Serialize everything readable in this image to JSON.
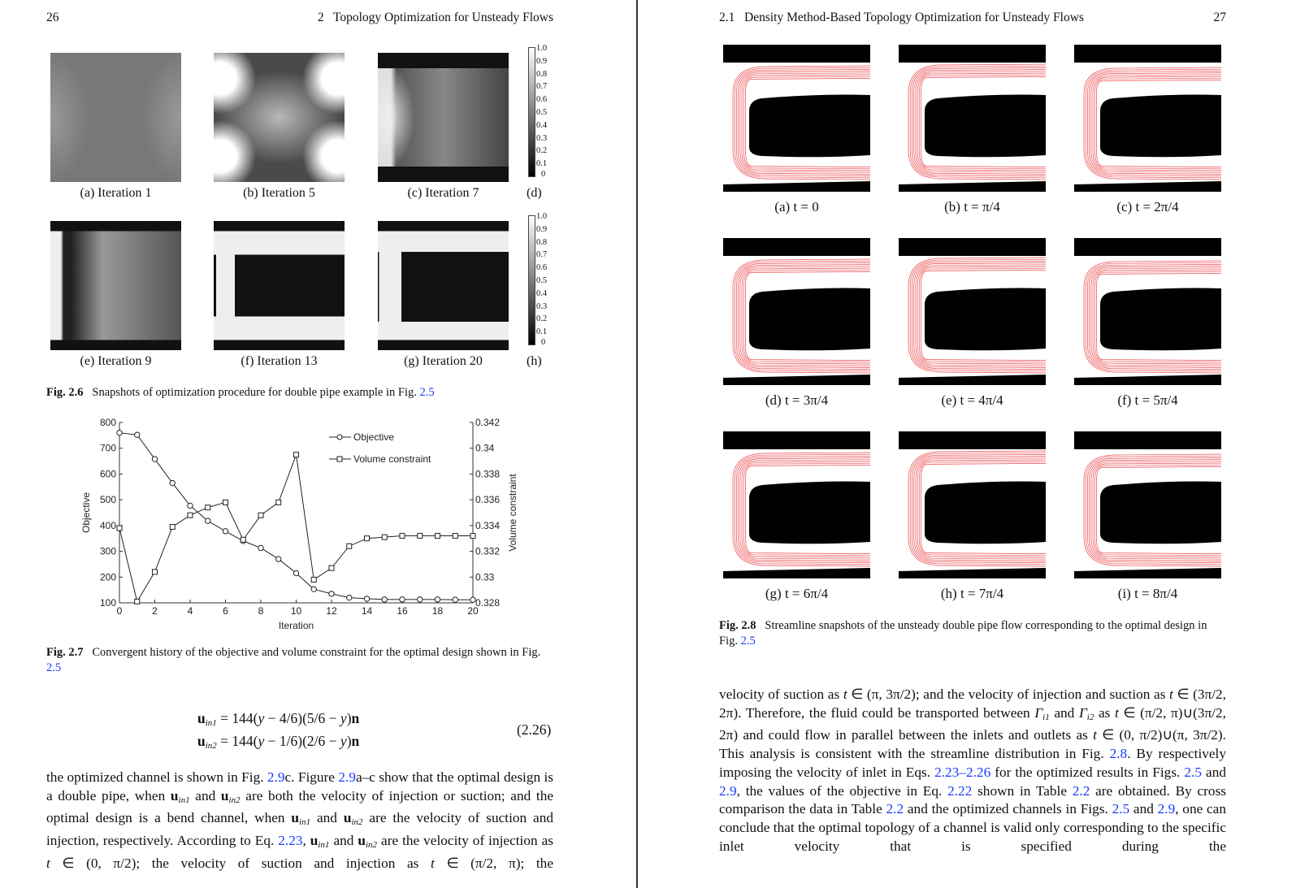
{
  "left_page": {
    "page_number": "26",
    "running_title": "2   Topology Optimization for Unsteady Flows",
    "fig26": {
      "captions": [
        "(a) Iteration 1",
        "(b) Iteration 5",
        "(c) Iteration 7",
        "(d)",
        "(e) Iteration 9",
        "(f) Iteration 13",
        "(g) Iteration 20",
        "(h)"
      ],
      "colorbar_labels": [
        "1.0",
        "0.9",
        "0.8",
        "0.7",
        "0.6",
        "0.5",
        "0.4",
        "0.3",
        "0.2",
        "0.1",
        "0"
      ],
      "label": "Fig. 2.6",
      "text": "Snapshots of optimization procedure for double pipe example in Fig.",
      "link": "2.5"
    },
    "fig27": {
      "label": "Fig. 2.7",
      "text": "Convergent history of the objective and volume constraint for the optimal design shown in Fig.",
      "link": "2.5"
    },
    "equation": {
      "line1": [
        "u",
        "in1",
        " = 144(",
        "y",
        " − 4/6)(5/6 − ",
        "y",
        ")",
        "n"
      ],
      "line2": [
        "u",
        "in2",
        " = 144(",
        "y",
        " − 1/6)(2/6 − ",
        "y",
        ")",
        "n"
      ],
      "number": "(2.26)"
    },
    "paragraph": [
      {
        "t": "the optimized channel is shown in Fig. "
      },
      {
        "l": "2.9"
      },
      {
        "t": "c. Figure "
      },
      {
        "l": "2.9"
      },
      {
        "t": "a–c show that the optimal design is a double pipe, when "
      },
      {
        "b": "u"
      },
      {
        "s": "in1"
      },
      {
        "t": " and "
      },
      {
        "b": "u"
      },
      {
        "s": "in2"
      },
      {
        "t": " are both the velocity of injection or suction; and the optimal design is a bend channel, when "
      },
      {
        "b": "u"
      },
      {
        "s": "in1"
      },
      {
        "t": " and "
      },
      {
        "b": "u"
      },
      {
        "s": "in2"
      },
      {
        "t": " are the velocity of suction and injection, respectively. According to Eq. "
      },
      {
        "l": "2.23"
      },
      {
        "t": ", "
      },
      {
        "b": "u"
      },
      {
        "s": "in1"
      },
      {
        "t": " and "
      },
      {
        "b": "u"
      },
      {
        "s": "in2"
      },
      {
        "t": " are the velocity of injection as "
      },
      {
        "i": "t"
      },
      {
        "t": " ∈ (0, π/2); the velocity of suction and injection as "
      },
      {
        "i": "t"
      },
      {
        "t": " ∈ (π/2, π); the"
      }
    ]
  },
  "chart_data": {
    "type": "line",
    "xlabel": "Iteration",
    "ylabel": "Objective",
    "y2label": "Volume constraint",
    "x": [
      0,
      1,
      2,
      3,
      4,
      5,
      6,
      7,
      8,
      9,
      10,
      11,
      12,
      13,
      14,
      15,
      16,
      17,
      18,
      19,
      20
    ],
    "xlim": [
      0,
      20
    ],
    "xticks": [
      0,
      2,
      4,
      6,
      8,
      10,
      12,
      14,
      16,
      18,
      20
    ],
    "ylim": [
      100,
      800
    ],
    "yticks": [
      100,
      200,
      300,
      400,
      500,
      600,
      700,
      800
    ],
    "y2lim": [
      0.328,
      0.342
    ],
    "y2ticks": [
      "0.328",
      "0.33",
      "0.332",
      "0.334",
      "0.336",
      "0.338",
      "0.34",
      "0.342"
    ],
    "legend_position": "top-right",
    "grid": false,
    "series": [
      {
        "name": "Objective",
        "marker": "circle",
        "axis": "left",
        "values": [
          760,
          752,
          658,
          565,
          477,
          418,
          378,
          340,
          313,
          270,
          215,
          153,
          135,
          120,
          116,
          113,
          113,
          113,
          113,
          112,
          112
        ]
      },
      {
        "name": "Volume constraint",
        "marker": "square",
        "axis": "right",
        "values": [
          0.3338,
          0.3281,
          0.3304,
          0.3339,
          0.3348,
          0.3354,
          0.3358,
          0.3329,
          0.3348,
          0.3358,
          0.3395,
          0.3298,
          0.3307,
          0.3324,
          0.333,
          0.3331,
          0.3332,
          0.3332,
          0.3332,
          0.3332,
          0.3332
        ]
      }
    ]
  },
  "right_page": {
    "page_number": "27",
    "running_title": "2.1   Density Method-Based Topology Optimization for Unsteady Flows",
    "fig28": {
      "captions": [
        "(a) t = 0",
        "(b) t = π/4",
        "(c) t = 2π/4",
        "(d) t = 3π/4",
        "(e) t = 4π/4",
        "(f) t = 5π/4",
        "(g) t = 6π/4",
        "(h) t = 7π/4",
        "(i) t = 8π/4"
      ],
      "label": "Fig. 2.8",
      "text": "Streamline snapshots of the unsteady double pipe flow corresponding to the optimal design in Fig.",
      "link": "2.5",
      "streamline_color": "#e8262a"
    },
    "paragraph": [
      {
        "t": "velocity of suction as "
      },
      {
        "i": "t"
      },
      {
        "t": " ∈ (π, 3π/2); and the velocity of injection and suction as "
      },
      {
        "i": "t"
      },
      {
        "t": " ∈ (3π/2, 2π). Therefore, the fluid could be transported between "
      },
      {
        "i": "Γ"
      },
      {
        "s": "i1"
      },
      {
        "t": " and "
      },
      {
        "i": "Γ"
      },
      {
        "s": "i2"
      },
      {
        "t": " as "
      },
      {
        "i": "t"
      },
      {
        "t": " ∈ (π/2, π)∪(3π/2, 2π) and could flow in parallel between the inlets and outlets as "
      },
      {
        "i": "t"
      },
      {
        "t": " ∈ (0, π/2)∪(π, 3π/2). This analysis is consistent with the streamline distribution in Fig. "
      },
      {
        "l": "2.8"
      },
      {
        "t": ". By respectively imposing the velocity of inlet in Eqs. "
      },
      {
        "l": "2.23–2.26"
      },
      {
        "t": " for the optimized results in Figs. "
      },
      {
        "l": "2.5"
      },
      {
        "t": " and "
      },
      {
        "l": "2.9"
      },
      {
        "t": ", the values of the objective in Eq. "
      },
      {
        "l": "2.22"
      },
      {
        "t": " shown in Table "
      },
      {
        "l": "2.2"
      },
      {
        "t": " are obtained. By cross comparison the data in Table "
      },
      {
        "l": "2.2"
      },
      {
        "t": " and the optimized channels in Figs. "
      },
      {
        "l": "2.5"
      },
      {
        "t": " and "
      },
      {
        "l": "2.9"
      },
      {
        "t": ", one can conclude that the optimal topology of a channel is valid only corresponding to the specific inlet velocity that is specified during the"
      }
    ]
  }
}
